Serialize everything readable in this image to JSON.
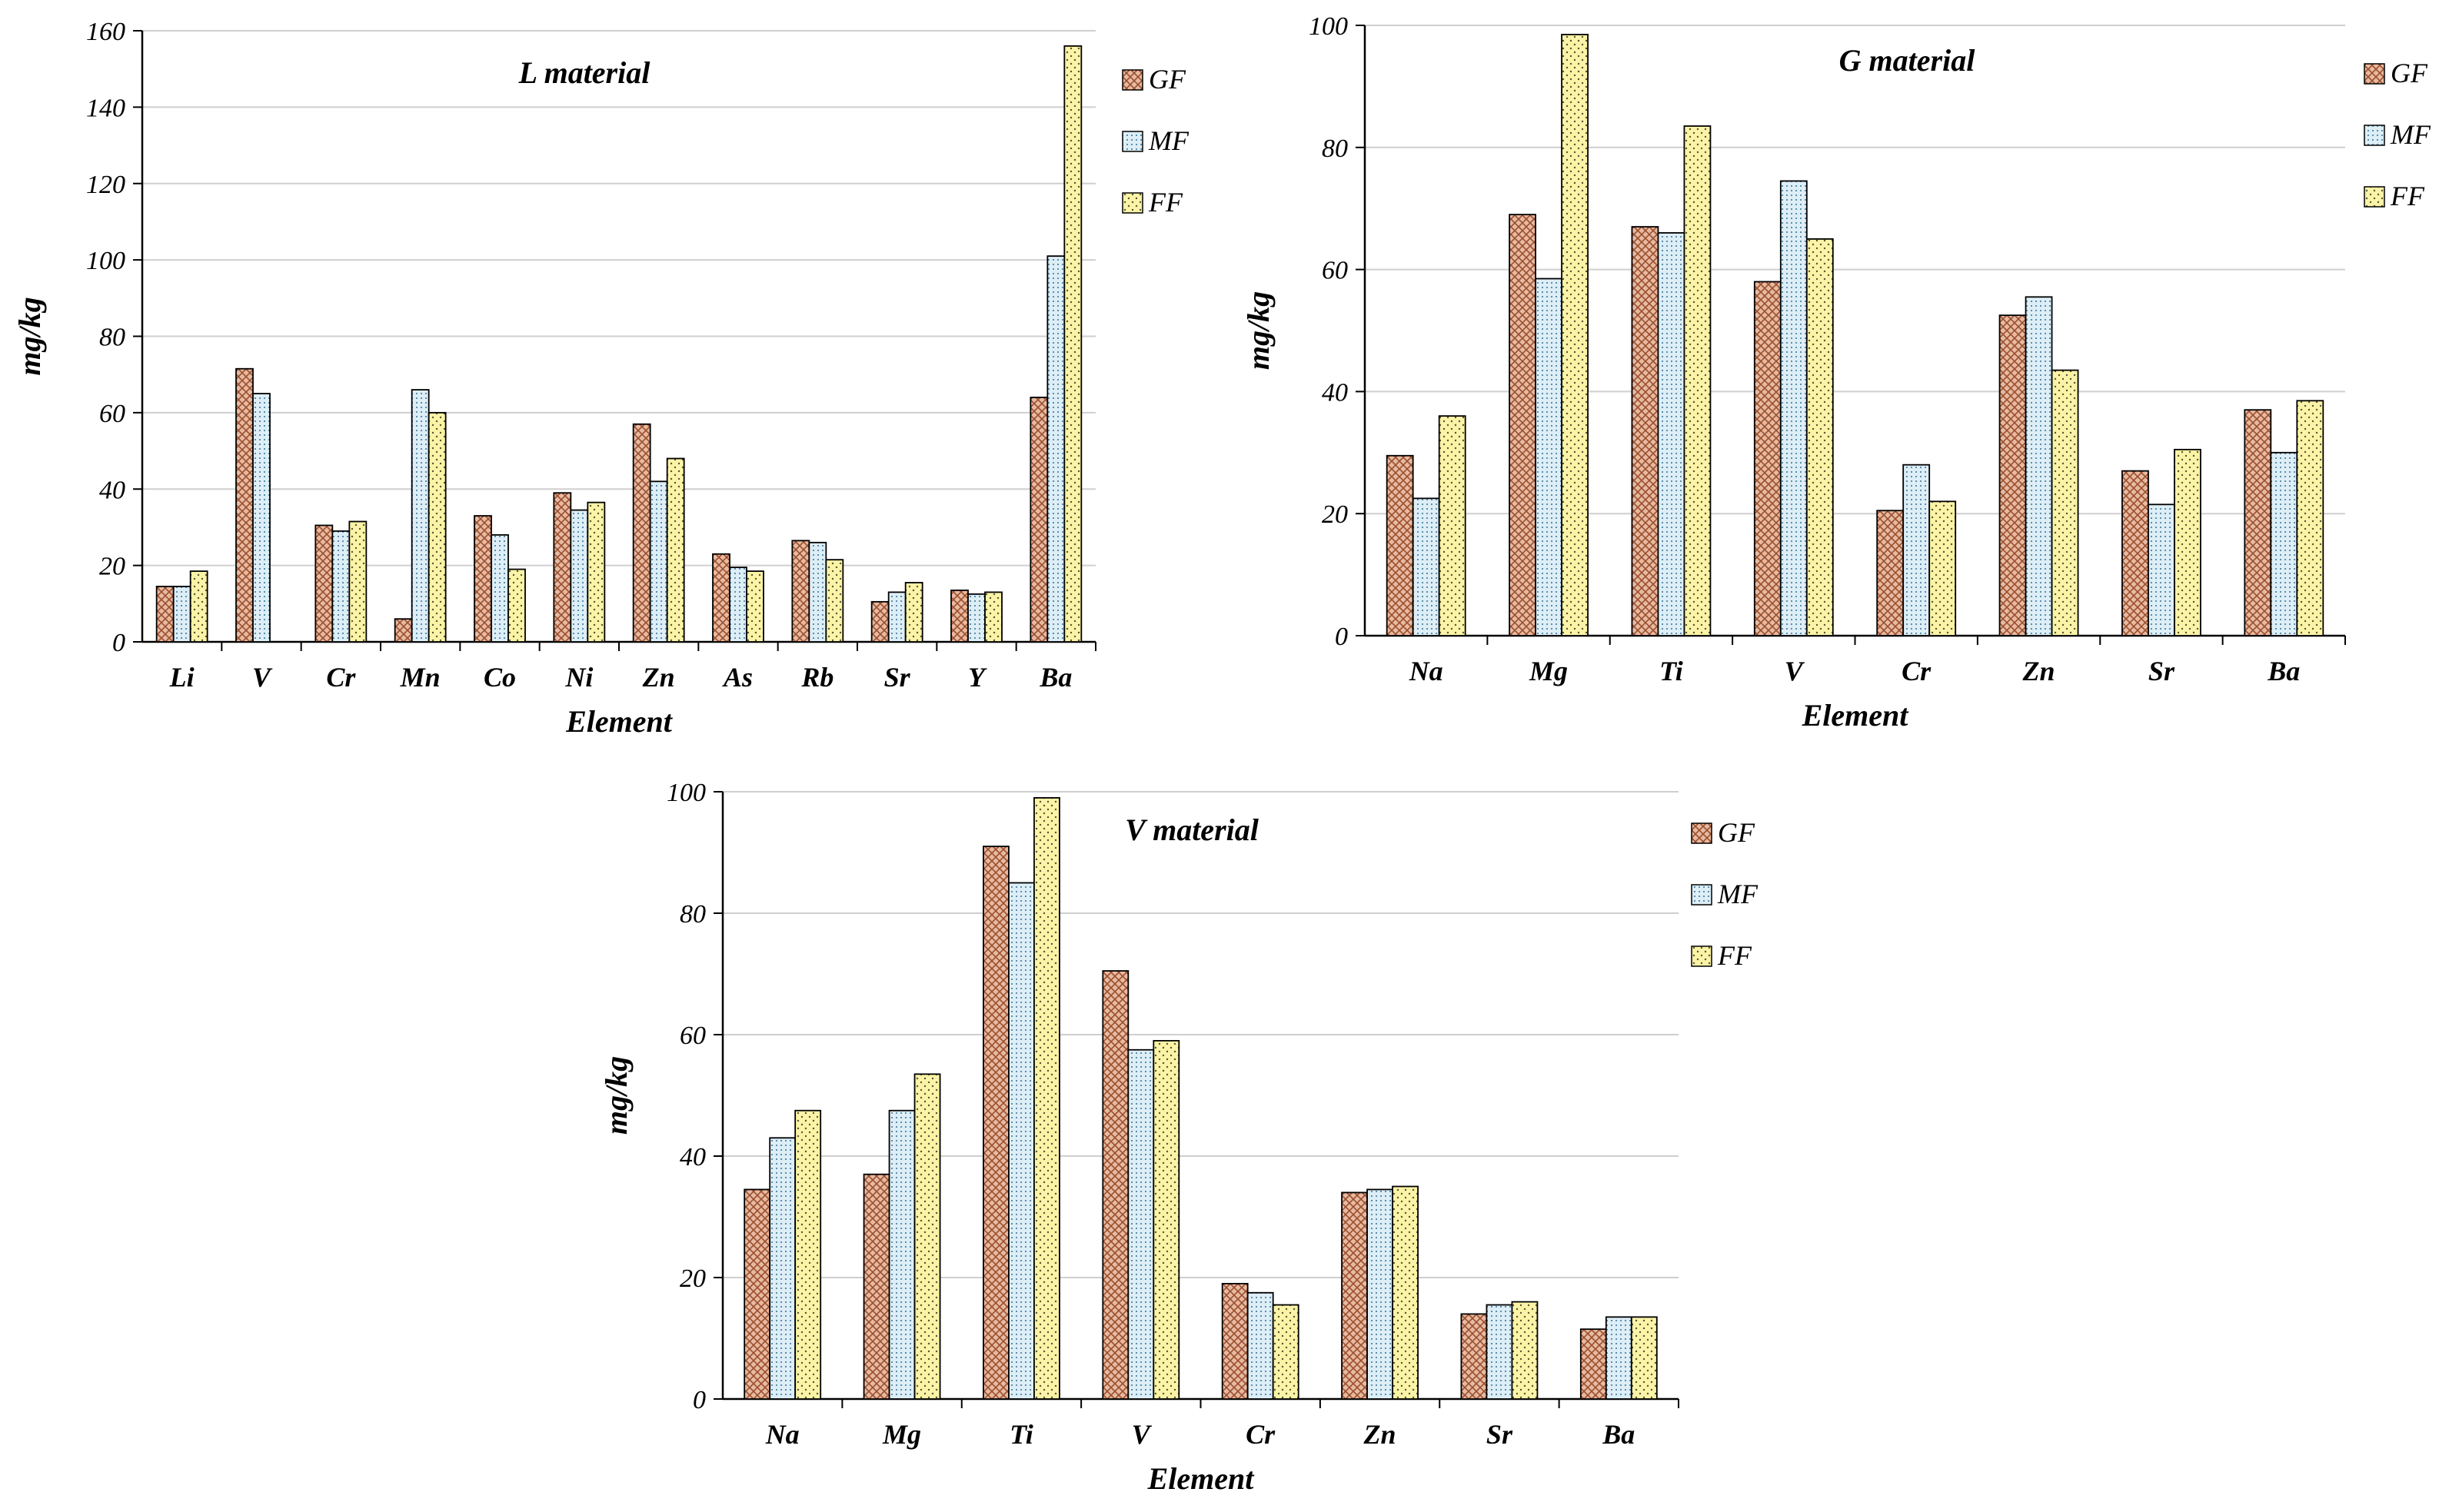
{
  "chart_data": [
    {
      "type": "bar",
      "title": "L material",
      "xlabel": "Element",
      "ylabel": "mg/kg",
      "ylim": [
        0,
        160
      ],
      "yticks": [
        0,
        20,
        40,
        60,
        80,
        100,
        120,
        140,
        160
      ],
      "categories": [
        "Li",
        "V",
        "Cr",
        "Mn",
        "Co",
        "Ni",
        "Zn",
        "As",
        "Rb",
        "Sr",
        "Y",
        "Ba"
      ],
      "series": [
        {
          "name": "GF",
          "values": [
            14.5,
            71.5,
            30.5,
            6,
            33,
            39,
            57,
            23,
            26.5,
            10.5,
            13.5,
            64
          ]
        },
        {
          "name": "MF",
          "values": [
            14.5,
            65,
            29,
            66,
            28,
            34.5,
            42,
            19.5,
            26,
            13,
            12.5,
            101
          ]
        },
        {
          "name": "FF",
          "values": [
            18.5,
            null,
            31.5,
            60,
            19,
            36.5,
            48,
            18.5,
            21.5,
            15.5,
            13,
            156
          ]
        }
      ],
      "legend": "top-right"
    },
    {
      "type": "bar",
      "title": "G material",
      "xlabel": "Element",
      "ylabel": "mg/kg",
      "ylim": [
        0,
        100
      ],
      "yticks": [
        0,
        20,
        40,
        60,
        80,
        100
      ],
      "categories": [
        "Na",
        "Mg",
        "Ti",
        "V",
        "Cr",
        "Zn",
        "Sr",
        "Ba"
      ],
      "series": [
        {
          "name": "GF",
          "values": [
            29.5,
            69,
            67,
            58,
            20.5,
            52.5,
            27,
            37
          ]
        },
        {
          "name": "MF",
          "values": [
            22.5,
            58.5,
            66,
            74.5,
            28,
            55.5,
            21.5,
            30
          ]
        },
        {
          "name": "FF",
          "values": [
            36,
            98.5,
            83.5,
            65,
            22,
            43.5,
            30.5,
            38.5
          ]
        }
      ],
      "legend": "top-right"
    },
    {
      "type": "bar",
      "title": "V material",
      "xlabel": "Element",
      "ylabel": "mg/kg",
      "ylim": [
        0,
        100
      ],
      "yticks": [
        0,
        20,
        40,
        60,
        80,
        100
      ],
      "categories": [
        "Na",
        "Mg",
        "Ti",
        "V",
        "Cr",
        "Zn",
        "Sr",
        "Ba"
      ],
      "series": [
        {
          "name": "GF",
          "values": [
            34.5,
            37,
            91,
            70.5,
            19,
            34,
            14,
            11.5
          ]
        },
        {
          "name": "MF",
          "values": [
            43,
            47.5,
            85,
            57.5,
            17.5,
            34.5,
            15.5,
            13.5
          ]
        },
        {
          "name": "FF",
          "values": [
            47.5,
            53.5,
            99,
            59,
            15.5,
            35,
            16,
            13.5
          ]
        }
      ],
      "legend": "top-right"
    }
  ]
}
